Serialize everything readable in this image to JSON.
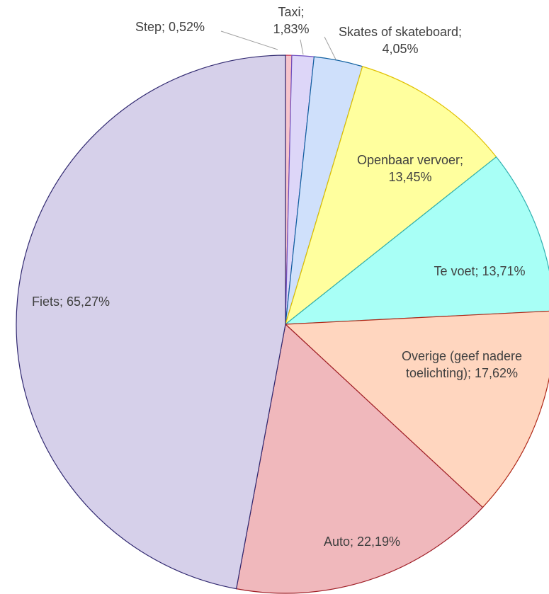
{
  "chart_data": {
    "type": "pie",
    "categories": [
      "Step",
      "Taxi",
      "Skates of skateboard",
      "Openbaar vervoer",
      "Te voet",
      "Overige (geef nadere toelichting)",
      "Auto",
      "Fiets"
    ],
    "values": [
      0.52,
      1.83,
      4.05,
      13.45,
      13.71,
      17.62,
      22.19,
      65.27
    ],
    "value_labels": [
      "0,52%",
      "1,83%",
      "4,05%",
      "13,45%",
      "13,71%",
      "17,62%",
      "22,19%",
      "65,27%"
    ],
    "label_separator": "; ",
    "colors": [
      "#f6c4cc",
      "#ddd6f8",
      "#cfe0fb",
      "#ffff9e",
      "#a8fff6",
      "#ffd6bf",
      "#f0b8bc",
      "#d6d0ea"
    ],
    "edge_colors": [
      "#c03050",
      "#7050c0",
      "#1060a0",
      "#e0c000",
      "#30b0b0",
      "#b02818",
      "#a02028",
      "#302870"
    ]
  }
}
